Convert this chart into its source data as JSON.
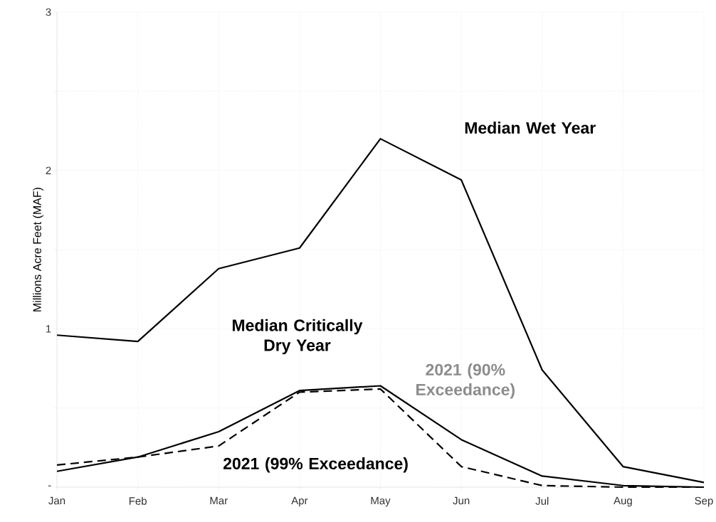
{
  "chart_data": {
    "type": "line",
    "ylabel": "Millions Acre Feet (MAF)",
    "categories": [
      "Jan",
      "Feb",
      "Mar",
      "Apr",
      "May",
      "Jun",
      "Jul",
      "Aug",
      "Sep"
    ],
    "series": [
      {
        "color": "#000000",
        "line_style": "solid",
        "values": [
          0.96,
          0.92,
          1.38,
          1.51,
          2.2,
          1.94,
          0.74,
          0.13,
          0.03
        ]
      },
      {
        "color": "#000000",
        "line_style": "solid",
        "values": [
          0.1,
          0.19,
          0.35,
          0.61,
          0.64,
          0.3,
          0.07,
          0.01,
          0.0
        ]
      },
      {
        "color": "#000000",
        "line_style": "dashed",
        "values": [
          0.14,
          0.19,
          0.26,
          0.6,
          0.62,
          0.13,
          0.01,
          0.0,
          0.0
        ]
      }
    ],
    "ylim": [
      0,
      3
    ],
    "yticks": [
      {
        "value": 0,
        "label": "-"
      },
      {
        "value": 0.5,
        "label": null
      },
      1,
      {
        "value": 1.5,
        "label": null
      },
      2,
      {
        "value": 2.5,
        "label": null
      },
      3
    ],
    "grid": true,
    "marker": "none",
    "annotations": [
      "Median Wet Year",
      "Median Critically Dry Year",
      "2021 (90% Exceedance)",
      "2021 (99% Exceedance)"
    ]
  }
}
